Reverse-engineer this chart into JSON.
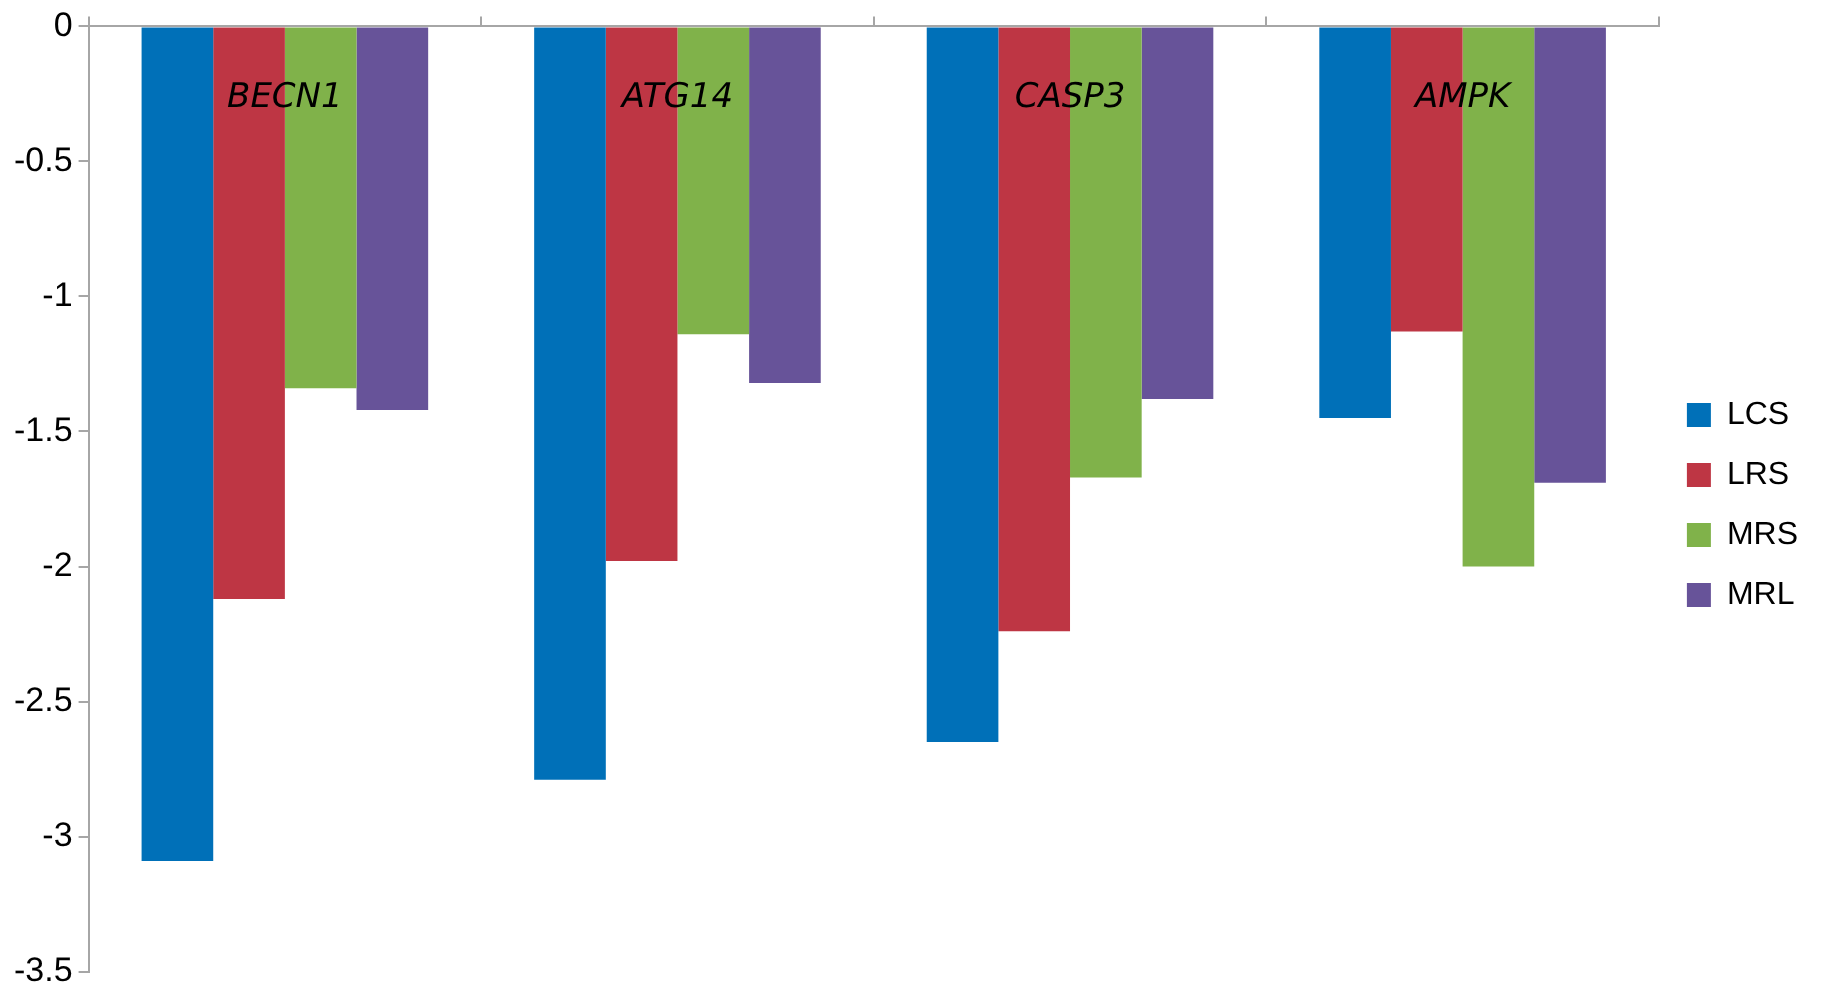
{
  "chart_data": {
    "type": "bar",
    "categories": [
      "BECN1",
      "ATG14",
      "CASP3",
      "AMPK"
    ],
    "series": [
      {
        "name": "LCS",
        "color": "#0070b8",
        "values": [
          -3.09,
          -2.79,
          -2.65,
          -1.45
        ]
      },
      {
        "name": "LRS",
        "color": "#be3644",
        "values": [
          -2.12,
          -1.98,
          -2.24,
          -1.13
        ]
      },
      {
        "name": "MRS",
        "color": "#80b24a",
        "values": [
          -1.34,
          -1.14,
          -1.67,
          -2.0
        ]
      },
      {
        "name": "MRL",
        "color": "#675399",
        "values": [
          -1.42,
          -1.32,
          -1.38,
          -1.69
        ]
      }
    ],
    "ylim": [
      -3.5,
      0
    ],
    "yticks": [
      0,
      -0.5,
      -1,
      -1.5,
      -2,
      -2.5,
      -3,
      -3.5
    ],
    "grid": false,
    "legend": "right"
  }
}
